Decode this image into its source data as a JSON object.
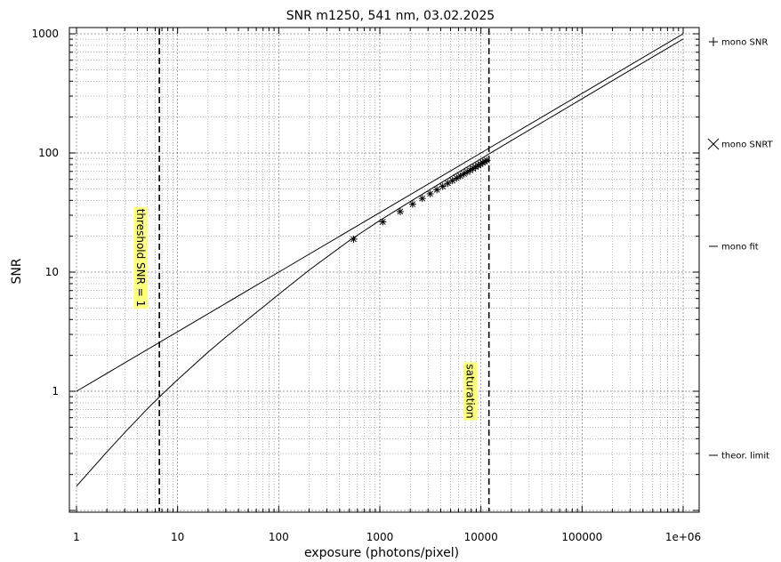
{
  "chart_data": {
    "type": "line",
    "title": "SNR m1250,  541 nm, 03.02.2025",
    "xlabel": "exposure (photons/pixel)",
    "ylabel": "SNR",
    "xscale": "log",
    "yscale": "log",
    "xlim": [
      1,
      1000000
    ],
    "ylim": [
      0.1,
      1000
    ],
    "x_ticks": [
      {
        "value": 1,
        "label": "1"
      },
      {
        "value": 10,
        "label": "10"
      },
      {
        "value": 100,
        "label": "100"
      },
      {
        "value": 1000,
        "label": "1000"
      },
      {
        "value": 10000,
        "label": "10000"
      },
      {
        "value": 100000,
        "label": "100000"
      },
      {
        "value": 1000000,
        "label": "1e+06"
      }
    ],
    "y_ticks": [
      {
        "value": 1,
        "label": "1"
      },
      {
        "value": 10,
        "label": "10"
      },
      {
        "value": 100,
        "label": "100"
      },
      {
        "value": 1000,
        "label": "1000"
      }
    ],
    "grid": true,
    "legend_position": "right",
    "series": [
      {
        "name": "mono SNR",
        "marker": "plus",
        "x": [
          550,
          1070,
          1590,
          2110,
          2630,
          3150,
          3670,
          4190,
          4710,
          5230,
          5750,
          6270,
          6790,
          7310,
          7830,
          8350,
          8870,
          9390,
          9910,
          10430,
          10950,
          11470
        ],
        "y": [
          18.9,
          26.4,
          32.2,
          37.2,
          41.5,
          45.4,
          49.1,
          52.4,
          55.6,
          58.6,
          61.4,
          64.1,
          66.7,
          69.2,
          71.6,
          74.0,
          76.2,
          78.4,
          80.6,
          82.7,
          84.7,
          86.7
        ]
      },
      {
        "name": "mono SNRT",
        "marker": "cross",
        "x": [
          550,
          1070,
          1590,
          2110,
          2630,
          3150,
          3670,
          4190,
          4710,
          5230,
          5750,
          6270,
          6790,
          7310,
          7830,
          8350,
          8870,
          9390,
          9910,
          10430,
          10950,
          11470
        ],
        "y": [
          18.9,
          26.4,
          32.2,
          37.2,
          41.5,
          45.4,
          49.1,
          52.4,
          55.6,
          58.6,
          61.4,
          64.1,
          66.7,
          69.2,
          71.6,
          74.0,
          76.2,
          78.4,
          80.6,
          82.7,
          84.7,
          86.7
        ]
      },
      {
        "name": "mono fit",
        "marker": "line",
        "x": [
          1,
          2,
          3,
          5,
          7,
          10,
          20,
          30,
          50,
          70,
          100,
          200,
          500,
          1000,
          2000,
          5000,
          10000,
          20000,
          50000,
          100000,
          200000,
          500000,
          1000000
        ],
        "y": [
          0.16,
          0.31,
          0.45,
          0.71,
          0.94,
          1.25,
          2.13,
          2.85,
          4.05,
          5.08,
          6.51,
          10.4,
          18.4,
          27.1,
          39.1,
          62.8,
          89.4,
          127.0,
          201.0,
          285.0,
          404.0,
          639.0,
          904.0
        ]
      },
      {
        "name": "theor. limit",
        "marker": "line",
        "x": [
          1,
          10,
          100,
          1000,
          10000,
          100000,
          1000000
        ],
        "y": [
          1,
          3.16,
          10,
          31.6,
          100,
          316,
          1000
        ]
      }
    ],
    "vlines": [
      {
        "x": 6.6,
        "label": "threshold SNR = 1",
        "style": "dashed"
      },
      {
        "x": 12000,
        "label": "saturation",
        "style": "dashed"
      }
    ]
  }
}
